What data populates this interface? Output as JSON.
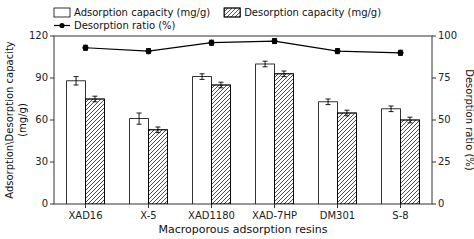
{
  "chart_data": {
    "type": "bar",
    "categories": [
      "XAD16",
      "X-5",
      "XAD1180",
      "XAD-7HP",
      "DM301",
      "S-8"
    ],
    "xlabel": "Macroporous adsorption resins",
    "ylabel": "Adsorption\\Desorption capacity\n(mg/g)",
    "y2label": "Desorption ratio (%)",
    "ylim": [
      0,
      120
    ],
    "yticks": [
      0,
      30,
      60,
      90,
      120
    ],
    "y2lim": [
      0,
      100
    ],
    "y2ticks": [
      0,
      25,
      50,
      75,
      100
    ],
    "grid": false,
    "legend": "upper left",
    "series": [
      {
        "name": "Adsorption capacity (mg/g)",
        "type": "bar",
        "color": "white",
        "values": [
          88,
          61,
          91,
          100,
          73,
          68
        ],
        "errors": [
          3,
          4,
          2,
          2,
          2,
          2
        ]
      },
      {
        "name": "Desorption capacity (mg/g)",
        "type": "bar",
        "color": "white",
        "values": [
          75,
          53,
          85,
          93,
          65,
          60
        ],
        "errors": [
          2,
          2,
          2,
          2,
          2,
          2
        ]
      },
      {
        "name": "Desorption ratio (%)",
        "type": "line",
        "axis": "y2",
        "color": "black",
        "marker": "circle",
        "values": [
          93,
          91,
          96,
          97,
          91,
          90
        ],
        "errors": [
          1.5,
          1.5,
          1.5,
          1.5,
          1.5,
          1.5
        ]
      }
    ]
  }
}
